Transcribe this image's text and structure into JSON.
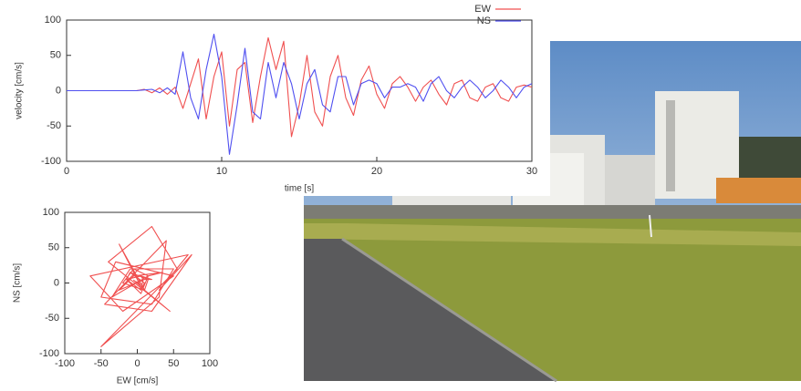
{
  "chart_data": [
    {
      "type": "line",
      "xlabel": "time [s]",
      "ylabel": "velocity [cm/s]",
      "x": [
        0,
        0.5,
        1,
        1.5,
        2,
        2.5,
        3,
        3.5,
        4,
        4.5,
        5,
        5.5,
        6,
        6.5,
        7,
        7.5,
        8,
        8.5,
        9,
        9.5,
        10,
        10.5,
        11,
        11.5,
        12,
        12.5,
        13,
        13.5,
        14,
        14.5,
        15,
        15.5,
        16,
        16.5,
        17,
        17.5,
        18,
        18.5,
        19,
        19.5,
        20,
        20.5,
        21,
        21.5,
        22,
        22.5,
        23,
        23.5,
        24,
        24.5,
        25,
        25.5,
        26,
        26.5,
        27,
        27.5,
        28,
        28.5,
        29,
        29.5,
        30
      ],
      "series": [
        {
          "name": "EW",
          "color": "#f05050",
          "values": [
            0,
            0,
            0,
            0,
            0,
            0,
            0,
            0,
            0,
            0,
            2,
            -3,
            4,
            -5,
            5,
            -25,
            10,
            45,
            -40,
            20,
            55,
            -50,
            30,
            40,
            -45,
            20,
            75,
            30,
            70,
            -65,
            -20,
            50,
            -30,
            -50,
            20,
            50,
            -10,
            -35,
            15,
            35,
            -5,
            -25,
            10,
            20,
            5,
            -15,
            5,
            15,
            -5,
            -20,
            10,
            15,
            -10,
            -15,
            5,
            10,
            -10,
            -15,
            5,
            8,
            5
          ]
        },
        {
          "name": "NS",
          "color": "#5050f0",
          "values": [
            0,
            0,
            0,
            0,
            0,
            0,
            0,
            0,
            0,
            0,
            1,
            2,
            -3,
            4,
            -5,
            55,
            -10,
            -40,
            30,
            80,
            20,
            -90,
            -20,
            60,
            -30,
            -40,
            40,
            -10,
            40,
            10,
            -40,
            10,
            30,
            -20,
            -30,
            20,
            20,
            -20,
            10,
            15,
            10,
            -10,
            5,
            5,
            10,
            5,
            -15,
            10,
            20,
            0,
            -10,
            5,
            15,
            5,
            -10,
            0,
            15,
            5,
            -10,
            5,
            10
          ]
        }
      ],
      "xlim": [
        0,
        30
      ],
      "xticks": [
        0,
        10,
        20,
        30
      ],
      "ylim": [
        -100,
        100
      ],
      "yticks": [
        -100,
        -50,
        0,
        50,
        100
      ],
      "legend": "top-right"
    },
    {
      "type": "orbit",
      "xlabel": "EW [cm/s]",
      "ylabel": "NS [cm/s]",
      "x": [
        0,
        0,
        0,
        0,
        0,
        0,
        0,
        0,
        0,
        0,
        2,
        -3,
        4,
        -5,
        5,
        -25,
        10,
        45,
        -40,
        20,
        55,
        -50,
        30,
        40,
        -45,
        20,
        75,
        30,
        70,
        -65,
        -20,
        50,
        -30,
        -50,
        20,
        50,
        -10,
        -35,
        15,
        35,
        -5,
        -25,
        10,
        20,
        5,
        -15,
        5,
        15,
        -5,
        -20,
        10,
        15,
        -10,
        -15,
        5,
        10,
        -10,
        -15,
        5,
        8,
        5
      ],
      "series": [
        {
          "color": "#f05050",
          "values": [
            0,
            0,
            0,
            0,
            0,
            0,
            0,
            0,
            0,
            0,
            1,
            2,
            -3,
            4,
            -5,
            55,
            -10,
            -40,
            30,
            80,
            20,
            -90,
            -20,
            60,
            -30,
            -40,
            40,
            -10,
            40,
            10,
            -40,
            10,
            30,
            -20,
            -30,
            20,
            20,
            -20,
            10,
            15,
            10,
            -10,
            5,
            5,
            10,
            5,
            -15,
            10,
            20,
            0,
            -10,
            5,
            15,
            5,
            -10,
            0,
            15,
            5,
            -10,
            5,
            10
          ]
        }
      ],
      "xlim": [
        -100,
        100
      ],
      "xticks": [
        -100,
        -50,
        0,
        50,
        100
      ],
      "ylim": [
        -100,
        100
      ],
      "yticks": [
        -100,
        -50,
        0,
        50,
        100
      ]
    }
  ]
}
